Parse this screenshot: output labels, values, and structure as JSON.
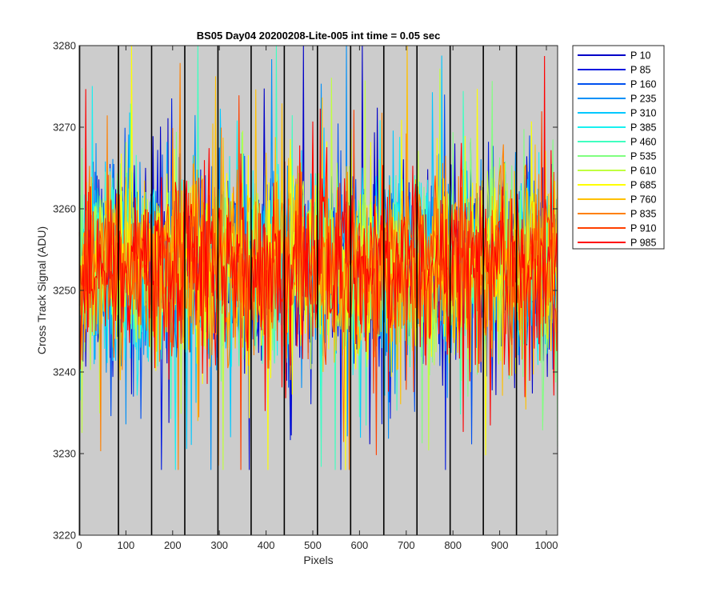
{
  "chart_data": {
    "type": "line",
    "title": "BS05 Day04 20200208-Lite-005 int time = 0.05 sec",
    "xlabel": "Pixels",
    "ylabel": "Cross Track Signal (ADU)",
    "xlim": [
      0,
      1024
    ],
    "ylim": [
      3220,
      3280
    ],
    "xticks": [
      0,
      100,
      200,
      300,
      400,
      500,
      600,
      700,
      800,
      900,
      1000
    ],
    "yticks": [
      3220,
      3230,
      3240,
      3250,
      3260,
      3270,
      3280
    ],
    "xtick_labels": [
      "0",
      "100",
      "200",
      "300",
      "400",
      "500",
      "600",
      "700",
      "800",
      "900",
      "1000"
    ],
    "ytick_labels": [
      "3220",
      "3230",
      "3240",
      "3250",
      "3260",
      "3270",
      "3280"
    ],
    "background_color": "#cccccc",
    "vertical_lines_x": [
      84,
      155,
      226,
      297,
      368,
      439,
      510,
      581,
      652,
      723,
      794,
      865,
      936
    ],
    "vertical_line_color": "#000000",
    "legend_position": "outside-right-top",
    "noise_mean": 3253,
    "noise_std": 5.5,
    "noise_min": 3228,
    "noise_max": 3280,
    "series": [
      {
        "name": "P 10",
        "color": "#0000c8"
      },
      {
        "name": "P 85",
        "color": "#0018e0"
      },
      {
        "name": "P 160",
        "color": "#0050f0"
      },
      {
        "name": "P 235",
        "color": "#0090f8"
      },
      {
        "name": "P 310",
        "color": "#00c8ff"
      },
      {
        "name": "P 385",
        "color": "#18f0f0"
      },
      {
        "name": "P 460",
        "color": "#40ffc0"
      },
      {
        "name": "P 535",
        "color": "#80ff80"
      },
      {
        "name": "P 610",
        "color": "#c0ff40"
      },
      {
        "name": "P 685",
        "color": "#ffff00"
      },
      {
        "name": "P 760",
        "color": "#ffc000"
      },
      {
        "name": "P 835",
        "color": "#ff8000"
      },
      {
        "name": "P 910",
        "color": "#ff4000"
      },
      {
        "name": "P 985",
        "color": "#ff0000"
      }
    ]
  }
}
